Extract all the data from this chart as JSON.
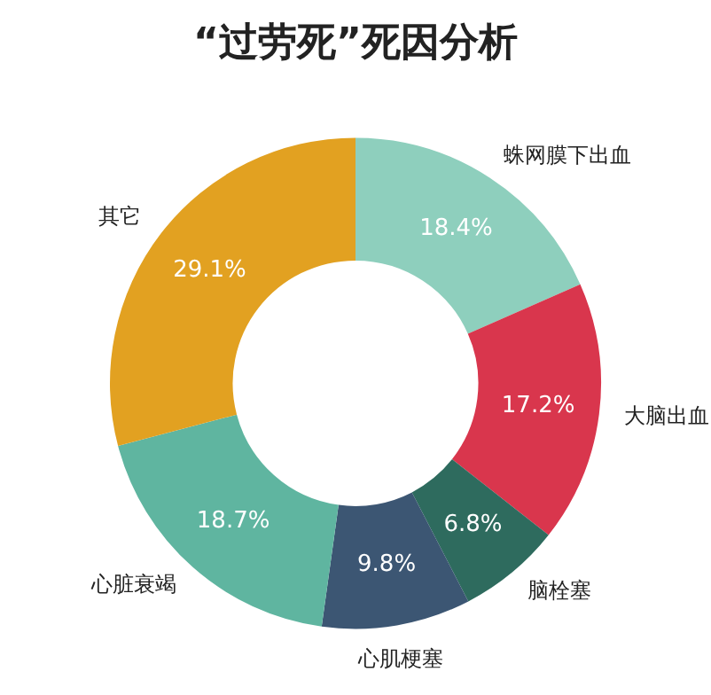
{
  "chart_data": {
    "type": "donut",
    "title": "“过劳死”死因分析",
    "categories": [
      "蛛网膜下出血",
      "大脑出血",
      "脑栓塞",
      "心肌梗塞",
      "心脏衰竭",
      "其它"
    ],
    "values": [
      18.4,
      17.2,
      6.8,
      9.8,
      18.7,
      29.1
    ],
    "colors": [
      "#8ecfbd",
      "#d9364d",
      "#2e6b5e",
      "#3c5673",
      "#5fb5a0",
      "#e2a121"
    ],
    "value_labels": [
      "18.4%",
      "17.2%",
      "6.8%",
      "9.8%",
      "18.7%",
      "29.1%"
    ]
  }
}
